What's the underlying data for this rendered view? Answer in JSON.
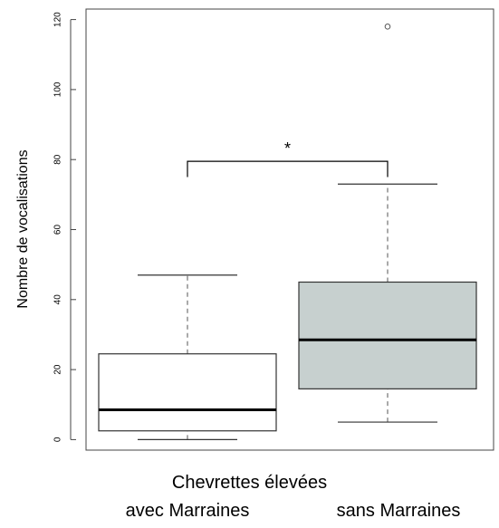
{
  "chart_data": {
    "type": "boxplot",
    "title": "",
    "ylabel": "Nombre de vocalisations",
    "xlabel": "Chevrettes élevées",
    "ylim": [
      -3,
      123
    ],
    "yticks": [
      0,
      20,
      40,
      60,
      80,
      100,
      120
    ],
    "grid": false,
    "categories": [
      "avec Marraines",
      "sans Marraines"
    ],
    "boxes": [
      {
        "category": "avec Marraines",
        "min": 0,
        "q1": 2.5,
        "median": 8.5,
        "q3": 24.5,
        "max": 47,
        "outliers": [],
        "fill": "#ffffff"
      },
      {
        "category": "sans Marraines",
        "min": 5,
        "q1": 14.5,
        "median": 28.5,
        "q3": 45,
        "max": 73,
        "outliers": [
          118
        ],
        "fill": "#c7d0cf"
      }
    ],
    "significance": {
      "label": "*",
      "between": [
        "avec Marraines",
        "sans Marraines"
      ],
      "y": 79.5,
      "drop_to": 75
    }
  }
}
